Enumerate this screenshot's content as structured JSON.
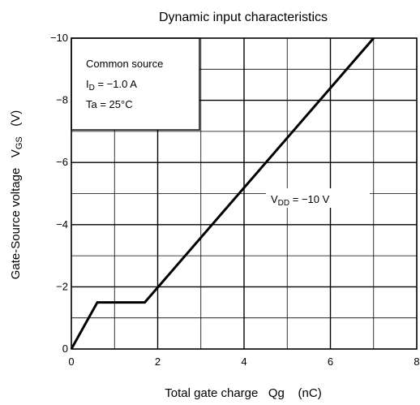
{
  "chart_data": {
    "type": "line",
    "title": "Dynamic input characteristics",
    "xlabel": "Total gate charge   Qg    (nC)",
    "ylabel": "Gate-Source voltage   V",
    "ylabel_sub": "GS",
    "ylabel_unit": "(V)",
    "xlim": [
      0,
      8
    ],
    "ylim": [
      0,
      -10
    ],
    "x_ticks": [
      0,
      2,
      4,
      6,
      8
    ],
    "x_tick_labels": [
      "0",
      "2",
      "4",
      "6",
      "8"
    ],
    "y_ticks": [
      0,
      -2,
      -4,
      -6,
      -8,
      -10
    ],
    "y_tick_labels": [
      "0",
      "−2",
      "−4",
      "−6",
      "−8",
      "−10"
    ],
    "grid": true,
    "conditions": {
      "line1": "Common source",
      "line2_main": "I",
      "line2_sub": "D",
      "line2_rest": " = −1.0 A",
      "line3": "Ta = 25°C"
    },
    "series": [
      {
        "label_main": "V",
        "label_sub": "DD",
        "label_rest": " = −10 V",
        "x": [
          0,
          0.6,
          1.7,
          7.0
        ],
        "y": [
          0,
          -1.5,
          -1.5,
          -10
        ]
      }
    ]
  }
}
